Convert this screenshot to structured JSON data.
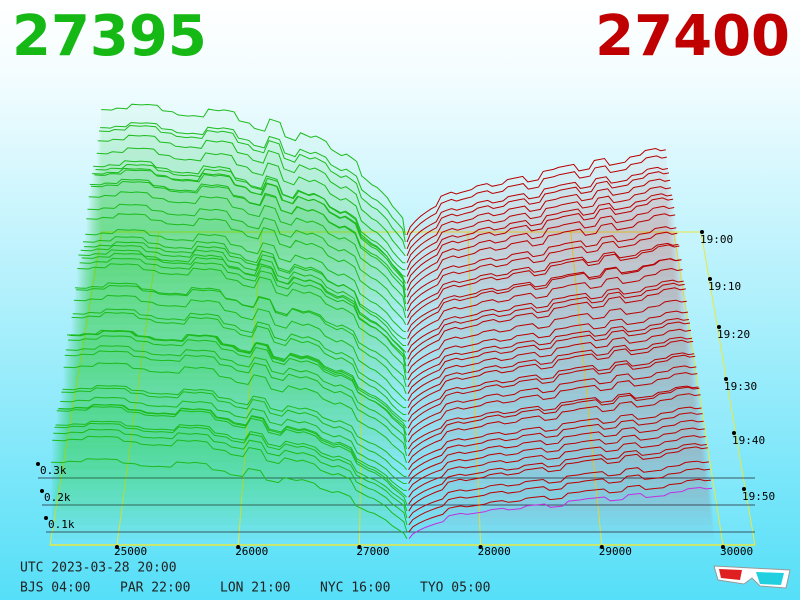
{
  "bid_price": "27395",
  "ask_price": "27400",
  "price_axis": [
    "25000",
    "26000",
    "27000",
    "28000",
    "29000",
    "30000"
  ],
  "time_axis": [
    "19:00",
    "19:10",
    "19:20",
    "19:30",
    "19:40",
    "19:50"
  ],
  "depth_axis": [
    "0.3k",
    "0.2k",
    "0.1k"
  ],
  "footer": {
    "utc": "UTC 2023-03-28 20:00",
    "zones": [
      "BJS 04:00",
      "PAR 22:00",
      "LON 21:00",
      "NYC 16:00",
      "TYO 05:00"
    ]
  }
}
